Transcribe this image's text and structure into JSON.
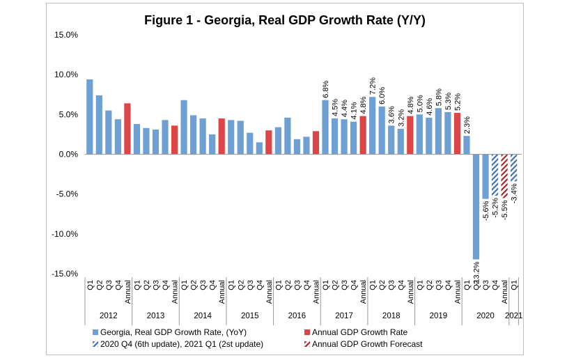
{
  "chart_data": {
    "type": "bar",
    "title": "Figure 1 - Georgia, Real GDP Growth Rate (Y/Y)",
    "y_ticks": [
      "15.0%",
      "10.0%",
      "5.0%",
      "0.0%",
      "-5.0%",
      "-10.0%",
      "-15.0%"
    ],
    "ylim": [
      -15,
      15
    ],
    "groups": [
      {
        "year": "2012",
        "bars": [
          {
            "cat": "Q1",
            "value": 9.4,
            "kind": "quarter"
          },
          {
            "cat": "Q2",
            "value": 7.4,
            "kind": "quarter"
          },
          {
            "cat": "Q3",
            "value": 5.5,
            "kind": "quarter"
          },
          {
            "cat": "Q4",
            "value": 4.4,
            "kind": "quarter"
          },
          {
            "cat": "Annual",
            "value": 6.4,
            "kind": "annual"
          }
        ]
      },
      {
        "year": "2013",
        "bars": [
          {
            "cat": "Q1",
            "value": 3.8,
            "kind": "quarter"
          },
          {
            "cat": "Q2",
            "value": 3.3,
            "kind": "quarter"
          },
          {
            "cat": "Q3",
            "value": 3.1,
            "kind": "quarter"
          },
          {
            "cat": "Q4",
            "value": 4.3,
            "kind": "quarter"
          },
          {
            "cat": "Annual",
            "value": 3.6,
            "kind": "annual"
          }
        ]
      },
      {
        "year": "2014",
        "bars": [
          {
            "cat": "Q1",
            "value": 6.8,
            "kind": "quarter"
          },
          {
            "cat": "Q2",
            "value": 4.9,
            "kind": "quarter"
          },
          {
            "cat": "Q3",
            "value": 4.5,
            "kind": "quarter"
          },
          {
            "cat": "Q4",
            "value": 2.5,
            "kind": "quarter"
          },
          {
            "cat": "Annual",
            "value": 4.5,
            "kind": "annual"
          }
        ]
      },
      {
        "year": "2015",
        "bars": [
          {
            "cat": "Q1",
            "value": 4.3,
            "kind": "quarter"
          },
          {
            "cat": "Q2",
            "value": 4.2,
            "kind": "quarter"
          },
          {
            "cat": "Q3",
            "value": 2.7,
            "kind": "quarter"
          },
          {
            "cat": "Q4",
            "value": 1.5,
            "kind": "quarter"
          },
          {
            "cat": "Annual",
            "value": 3.0,
            "kind": "annual"
          }
        ]
      },
      {
        "year": "2016",
        "bars": [
          {
            "cat": "Q1",
            "value": 3.4,
            "kind": "quarter"
          },
          {
            "cat": "Q2",
            "value": 4.6,
            "kind": "quarter"
          },
          {
            "cat": "Q3",
            "value": 1.9,
            "kind": "quarter"
          },
          {
            "cat": "Q4",
            "value": 2.2,
            "kind": "quarter"
          },
          {
            "cat": "Annual",
            "value": 2.9,
            "kind": "annual"
          }
        ]
      },
      {
        "year": "2017",
        "bars": [
          {
            "cat": "Q1",
            "value": 6.8,
            "kind": "quarter",
            "label": "6.8%"
          },
          {
            "cat": "Q2",
            "value": 4.5,
            "kind": "quarter",
            "label": "4.5%"
          },
          {
            "cat": "Q3",
            "value": 4.4,
            "kind": "quarter",
            "label": "4.4%"
          },
          {
            "cat": "Q4",
            "value": 4.1,
            "kind": "quarter",
            "label": "4.1%"
          },
          {
            "cat": "Annual",
            "value": 4.8,
            "kind": "annual",
            "label": "4.8%"
          }
        ]
      },
      {
        "year": "2018",
        "bars": [
          {
            "cat": "Q1",
            "value": 7.2,
            "kind": "quarter",
            "label": "7.2%"
          },
          {
            "cat": "Q2",
            "value": 6.0,
            "kind": "quarter",
            "label": "6.0%"
          },
          {
            "cat": "Q3",
            "value": 3.6,
            "kind": "quarter",
            "label": "3.6%"
          },
          {
            "cat": "Q4",
            "value": 3.2,
            "kind": "quarter",
            "label": "3.2%"
          },
          {
            "cat": "Annual",
            "value": 4.8,
            "kind": "annual",
            "label": "4.8%"
          }
        ]
      },
      {
        "year": "2019",
        "bars": [
          {
            "cat": "Q1",
            "value": 5.0,
            "kind": "quarter",
            "label": "5.0%"
          },
          {
            "cat": "Q2",
            "value": 4.6,
            "kind": "quarter",
            "label": "4.6%"
          },
          {
            "cat": "Q3",
            "value": 5.8,
            "kind": "quarter",
            "label": "5.8%"
          },
          {
            "cat": "Q4",
            "value": 5.3,
            "kind": "quarter",
            "label": "5.3%"
          },
          {
            "cat": "Annual",
            "value": 5.2,
            "kind": "annual",
            "label": "5.2%"
          }
        ]
      },
      {
        "year": "2020",
        "bars": [
          {
            "cat": "Q1",
            "value": 2.3,
            "kind": "quarter",
            "label": "2.3%"
          },
          {
            "cat": "Q2",
            "value": -13.2,
            "kind": "quarter",
            "label": "-13.2%"
          },
          {
            "cat": "Q3",
            "value": -5.6,
            "kind": "quarter",
            "label": "-5.6%"
          },
          {
            "cat": "Q4",
            "value": -5.2,
            "kind": "forecast",
            "label": "-5.2%"
          },
          {
            "cat": "Annual",
            "value": -5.5,
            "kind": "annual_forecast",
            "label": "-5.5%"
          }
        ]
      },
      {
        "year": "2021",
        "bars": [
          {
            "cat": "Q1",
            "value": -3.4,
            "kind": "forecast",
            "label": "-3.4%"
          }
        ]
      }
    ],
    "legend": [
      {
        "label": "Georgia, Real GDP Growth Rate, (YoY)",
        "kind": "quarter"
      },
      {
        "label": "Annual GDP Growth Rate",
        "kind": "annual"
      },
      {
        "label": "2020 Q4 (6th update), 2021 Q1 (2st update)",
        "kind": "forecast"
      },
      {
        "label": "Annual GDP Growth Forecast",
        "kind": "annual_forecast"
      }
    ],
    "colors": {
      "quarter": "#6fa0d3",
      "annual": "#dd4646",
      "forecast": "#3d72b4",
      "annual_forecast": "#a3262a",
      "axis": "#999999"
    }
  }
}
